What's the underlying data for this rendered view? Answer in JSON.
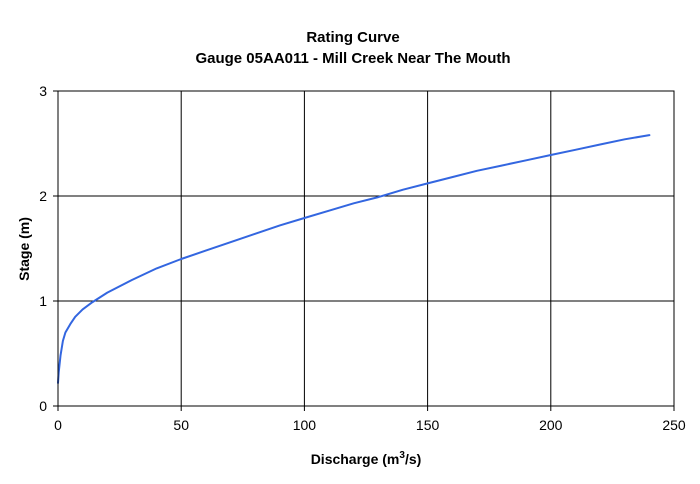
{
  "chart_data": {
    "type": "line",
    "title": "Rating Curve",
    "subtitle": "Gauge 05AA011 - Mill Creek Near The Mouth",
    "xlabel": "Discharge (m",
    "xlabel_sup": "3",
    "xlabel_tail": "/s)",
    "ylabel": "Stage (m)",
    "xlim": [
      0,
      250
    ],
    "ylim": [
      0,
      3
    ],
    "xticks": [
      0,
      50,
      100,
      150,
      200,
      250
    ],
    "yticks": [
      0,
      1,
      2,
      3
    ],
    "xtick_labels": [
      "0",
      "50",
      "100",
      "150",
      "200",
      "250"
    ],
    "ytick_labels": [
      "0",
      "1",
      "2",
      "3"
    ],
    "grid": true,
    "line_color": "#3366e0",
    "series": [
      {
        "x": [
          0,
          0.3,
          1,
          2,
          3,
          5,
          7,
          10,
          14,
          20,
          30,
          40,
          50,
          60,
          70,
          80,
          90,
          100,
          110,
          120,
          130,
          140,
          150,
          160,
          170,
          180,
          190,
          200,
          210,
          220,
          230,
          240
        ],
        "y": [
          0.22,
          0.32,
          0.48,
          0.62,
          0.7,
          0.78,
          0.85,
          0.92,
          0.99,
          1.08,
          1.2,
          1.31,
          1.4,
          1.48,
          1.56,
          1.64,
          1.72,
          1.79,
          1.86,
          1.93,
          1.99,
          2.06,
          2.12,
          2.18,
          2.24,
          2.29,
          2.34,
          2.39,
          2.44,
          2.49,
          2.54,
          2.58
        ]
      }
    ]
  }
}
